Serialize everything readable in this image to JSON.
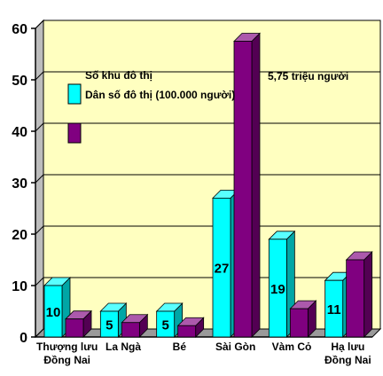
{
  "chart_data": {
    "type": "bar",
    "categories": [
      "Thượng lưu\nĐồng Nai",
      "La Ngà",
      "Bé",
      "Sài Gòn",
      "Vàm Cỏ",
      "Hạ lưu\nĐồng Nai"
    ],
    "series": [
      {
        "name": "Số khu đô thị",
        "values": [
          10,
          5,
          5,
          27,
          19,
          11
        ],
        "color": "#00FFFF"
      },
      {
        "name": "Dân số đô thị (100.000 người)",
        "values": [
          3.5,
          2.8,
          2.2,
          57.5,
          5.5,
          15
        ]
      }
    ],
    "series_colors": [
      "#00FFFF",
      "#800080"
    ],
    "data_labels": [
      "10",
      "5",
      "5",
      "27",
      "19",
      "11"
    ],
    "annotation": "5,75 triệu người",
    "ylim": [
      0,
      60
    ],
    "yticks": [
      0,
      10,
      20,
      30,
      40,
      50,
      60
    ],
    "grid": true,
    "plot_bg": "#FFFFC0",
    "legend_position": "center-left"
  }
}
